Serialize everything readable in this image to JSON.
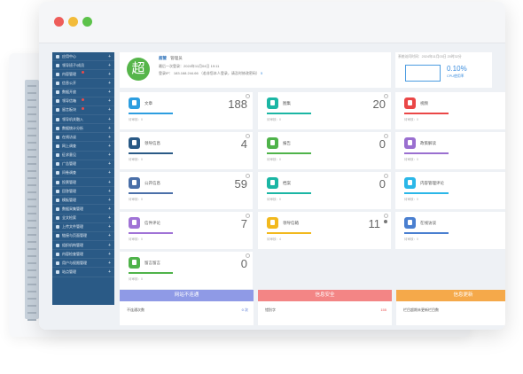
{
  "sidebar": {
    "items": [
      {
        "label": "应用中心",
        "badge": false
      },
      {
        "label": "领导班子/成员",
        "badge": false
      },
      {
        "label": "内容管理",
        "badge": true
      },
      {
        "label": "信息公开",
        "badge": false
      },
      {
        "label": "数据开放",
        "badge": false
      },
      {
        "label": "领导信箱",
        "badge": true
      },
      {
        "label": "留言板块",
        "badge": true
      },
      {
        "label": "领导机关融入",
        "badge": false
      },
      {
        "label": "数据统计分析",
        "badge": false
      },
      {
        "label": "在线访谈",
        "badge": false
      },
      {
        "label": "网上调查",
        "badge": false
      },
      {
        "label": "征求意见",
        "badge": false
      },
      {
        "label": "广告管理",
        "badge": false
      },
      {
        "label": "问卷调查",
        "badge": false
      },
      {
        "label": "投票管理",
        "badge": false
      },
      {
        "label": "回答管理",
        "badge": false
      },
      {
        "label": "模板管理",
        "badge": false
      },
      {
        "label": "数据采集管理",
        "badge": false
      },
      {
        "label": "全文检索",
        "badge": false
      },
      {
        "label": "上传文件管理",
        "badge": false
      },
      {
        "label": "链接与页面管理",
        "badge": false
      },
      {
        "label": "组织机构管理",
        "badge": false
      },
      {
        "label": "内容检查管理",
        "badge": false
      },
      {
        "label": "用户与权限管理",
        "badge": false
      },
      {
        "label": "站点管理",
        "badge": false
      }
    ]
  },
  "profile": {
    "avatar_char": "超",
    "name": "超管",
    "role": "管理员",
    "last_login": "最后一次登录：2024年11月04日 19:11",
    "ip_label": "登录IP：",
    "ip": "183.168.244.66",
    "ip_hint": "（若非您本人登录，请及时修改密码）",
    "count": "5"
  },
  "stat": {
    "label": "系统访问时间：2024年11月03日 20时32分",
    "percent": "0.10%",
    "sub": "CPU使用率"
  },
  "cards": [
    {
      "name": "文章",
      "count": "188",
      "sub": "待审核：0",
      "color": "#2d9ee0"
    },
    {
      "name": "图集",
      "count": "20",
      "sub": "待审核：0",
      "color": "#1bb6a4"
    },
    {
      "name": "视频",
      "count": "",
      "sub": "待审核：0",
      "color": "#ea4747"
    },
    {
      "name": "领导信息",
      "count": "4",
      "sub": "待审核：0",
      "color": "#2a5a86"
    },
    {
      "name": "报告",
      "count": "0",
      "sub": "待审核：0",
      "color": "#4fb34a"
    },
    {
      "name": "政策解读",
      "count": "",
      "sub": "待审核：0",
      "color": "#9a6fd0"
    },
    {
      "name": "公开信息",
      "count": "59",
      "sub": "待审核：0",
      "color": "#4a6fa8"
    },
    {
      "name": "档案",
      "count": "0",
      "sub": "待审核：0",
      "color": "#1bb6a4"
    },
    {
      "name": "内容管理评论",
      "count": "",
      "sub": "待审核：0",
      "color": "#2bb7e8"
    },
    {
      "name": "信件评论",
      "count": "7",
      "sub": "待审核：0",
      "color": "#a073d6"
    },
    {
      "name": "领导信箱",
      "count": "11",
      "sub": "待审核：4",
      "color": "#f2b91e"
    },
    {
      "name": "在线访谈",
      "count": "",
      "sub": "待审核：0",
      "color": "#4a7fd0"
    },
    {
      "name": "留言留言",
      "count": "0",
      "sub": "待审核：0",
      "color": "#4fb34a"
    }
  ],
  "panels": [
    {
      "title": "网站不连通",
      "color": "#8f9ae6",
      "row_label": "不连通次数",
      "row_value": "0 次"
    },
    {
      "title": "信息安全",
      "color": "#f38585",
      "row_label": "错别字",
      "row_value": "155"
    },
    {
      "title": "信息更新",
      "color": "#f5a94a",
      "row_label": "栏目超期未更新栏目数",
      "row_value": ""
    }
  ]
}
